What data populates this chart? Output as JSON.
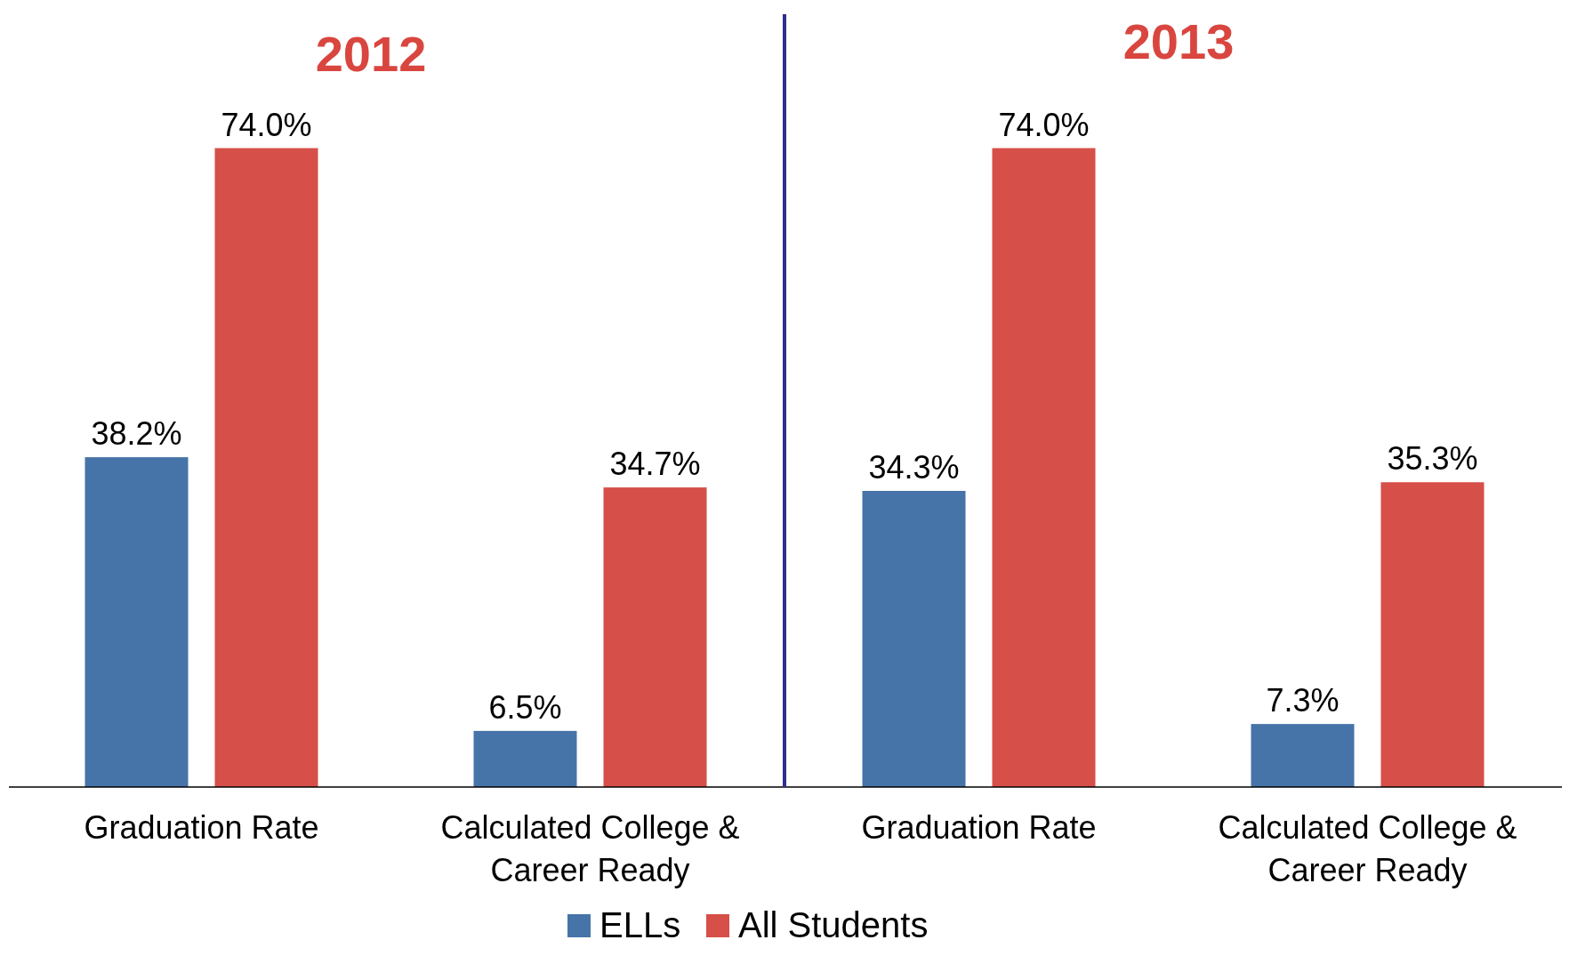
{
  "chart_data": [
    {
      "type": "bar",
      "title": "2012",
      "categories": [
        "Graduation Rate",
        "Calculated College & Career Ready"
      ],
      "series": [
        {
          "color": "#4674a9",
          "values": [
            38.2,
            6.5
          ],
          "value_labels": [
            "38.2%",
            "6.5%"
          ]
        },
        {
          "color": "#d64f48",
          "values": [
            74.0,
            34.7
          ],
          "value_labels": [
            "74.0%",
            "34.7%"
          ]
        }
      ],
      "legend": false
    },
    {
      "type": "bar",
      "title": "2013",
      "categories": [
        "Graduation Rate",
        "Calculated College & Career Ready"
      ],
      "series": [
        {
          "name": "ELLs",
          "color": "#4674a9",
          "values": [
            34.3,
            7.3
          ],
          "value_labels": [
            "34.3%",
            "7.3%"
          ]
        },
        {
          "name": "All Students",
          "color": "#d64f48",
          "values": [
            74.0,
            35.3
          ],
          "value_labels": [
            "74.0%",
            "35.3%"
          ]
        }
      ],
      "legend": "bottom"
    }
  ]
}
